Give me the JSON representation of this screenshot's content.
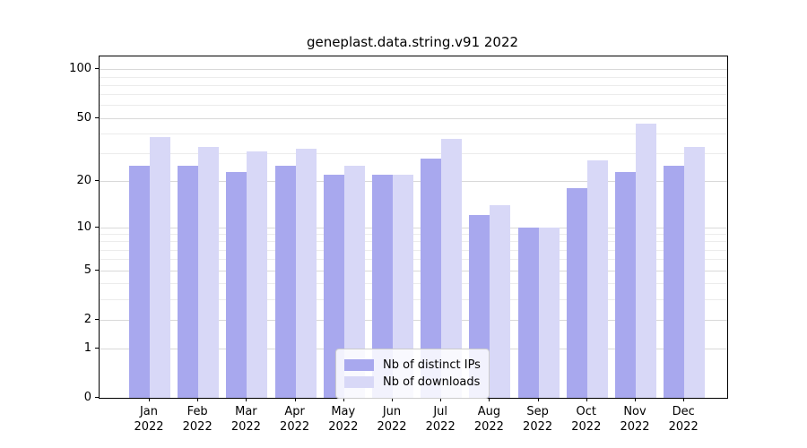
{
  "figure": {
    "title": "geneplast.data.string.v91 2022"
  },
  "chart_data": {
    "type": "bar",
    "title": "geneplast.data.string.v91 2022",
    "categories": [
      "Jan",
      "Feb",
      "Mar",
      "Apr",
      "May",
      "Jun",
      "Jul",
      "Aug",
      "Sep",
      "Oct",
      "Nov",
      "Dec"
    ],
    "year": "2022",
    "series": [
      {
        "name": "Nb of distinct IPs",
        "color": "#a8a8ee",
        "values": [
          25,
          25,
          23,
          25,
          22,
          22,
          28,
          12,
          10,
          18,
          23,
          25
        ]
      },
      {
        "name": "Nb of downloads",
        "color": "#d8d8f7",
        "values": [
          38,
          33,
          31,
          32,
          25,
          22,
          37,
          14,
          10,
          27,
          46,
          33
        ]
      }
    ],
    "yscale": "log1p",
    "ylim": [
      0,
      120
    ],
    "ytick_values": [
      100,
      50,
      20,
      10,
      5,
      2,
      1,
      0
    ],
    "ytick_labels": [
      "100",
      "50",
      "20",
      "10",
      "5",
      "2",
      "1",
      "0"
    ],
    "major_grid_values": [
      1,
      2,
      5,
      10,
      20,
      50,
      100
    ],
    "minor_grid_values": [
      3,
      4,
      6,
      7,
      8,
      9,
      30,
      40,
      60,
      70,
      80,
      90
    ],
    "grid": true,
    "legend_position": "lower center",
    "legend_entries": [
      "Nb of distinct IPs",
      "Nb of downloads"
    ]
  },
  "colors": {
    "distinct_ips_bar": "#a8a8ee",
    "downloads_bar": "#d8d8f7",
    "major_grid": "#d9d9d9",
    "minor_grid": "#ececec",
    "axis": "#000000",
    "legend_border": "#cccccc"
  }
}
